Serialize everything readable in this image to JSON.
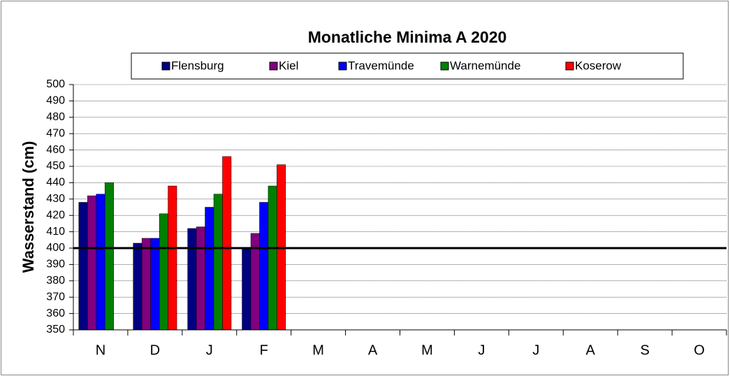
{
  "chart_data": {
    "type": "bar",
    "title": "Monatliche Minima A 2020",
    "y_label": "Wasserstand  (cm)",
    "categories": [
      "N",
      "D",
      "J",
      "F",
      "M",
      "A",
      "M",
      "J",
      "J",
      "A",
      "S",
      "O"
    ],
    "series": [
      {
        "name": "Flensburg",
        "color": "#000080",
        "values": [
          428,
          403,
          412,
          400,
          null,
          null,
          null,
          null,
          null,
          null,
          null,
          null
        ]
      },
      {
        "name": "Kiel",
        "color": "#800080",
        "values": [
          432,
          406,
          413,
          409,
          null,
          null,
          null,
          null,
          null,
          null,
          null,
          null
        ]
      },
      {
        "name": "Travemünde",
        "color": "#0000ff",
        "values": [
          433,
          406,
          425,
          428,
          null,
          null,
          null,
          null,
          null,
          null,
          null,
          null
        ]
      },
      {
        "name": "Warnemünde",
        "color": "#008000",
        "values": [
          440,
          421,
          433,
          438,
          null,
          null,
          null,
          null,
          null,
          null,
          null,
          null
        ]
      },
      {
        "name": "Koserow",
        "color": "#ff0000",
        "values": [
          null,
          438,
          456,
          451,
          null,
          null,
          null,
          null,
          null,
          null,
          null,
          null
        ]
      }
    ],
    "ylim": [
      350,
      500
    ],
    "yticks": [
      350,
      360,
      370,
      380,
      390,
      400,
      410,
      420,
      430,
      440,
      450,
      460,
      470,
      480,
      490,
      500
    ],
    "grid": true,
    "reference_line": 400,
    "legend": "top"
  }
}
